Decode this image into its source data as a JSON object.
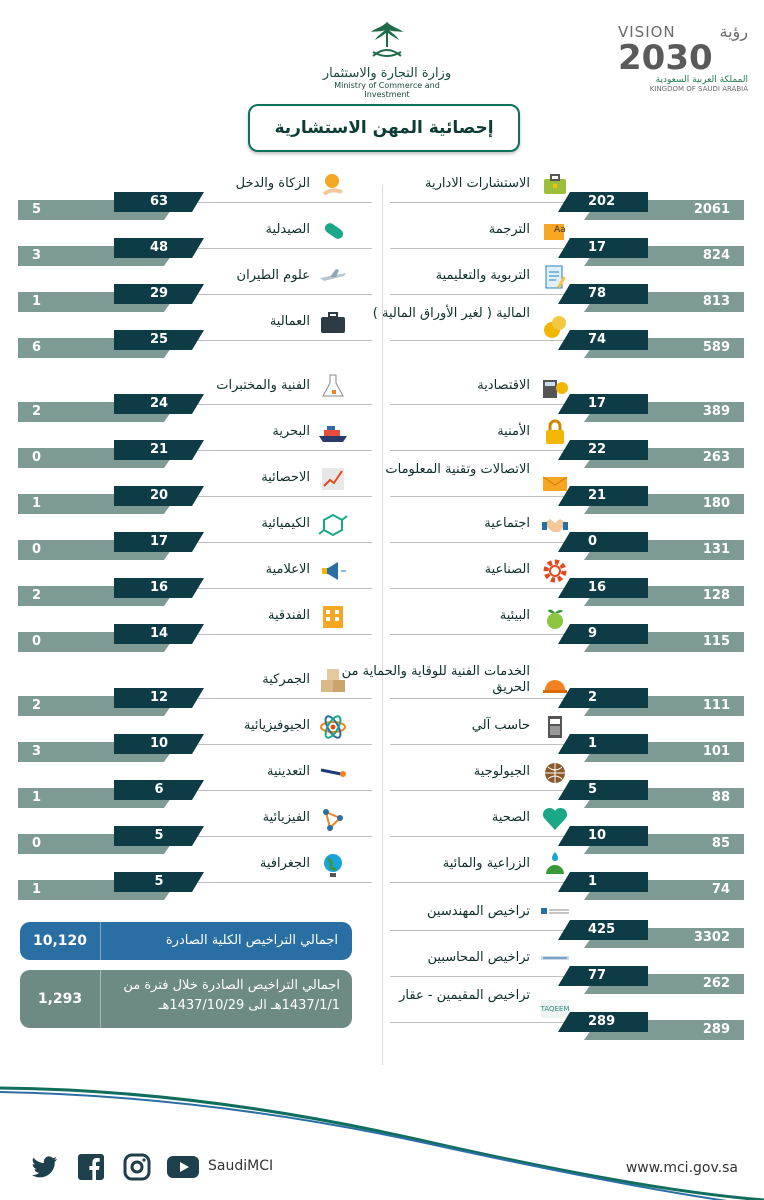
{
  "header": {
    "ministry_ar": "وزارة التجارة والاستثمار",
    "ministry_en": "Ministry of Commerce and Investment",
    "vision_word": "VISION",
    "vision_ar": "رؤية",
    "vision_year": "2030",
    "kingdom_ar": "المملكة العربية السعودية",
    "kingdom_en": "KINGDOM OF SAUDI ARABIA"
  },
  "title": "إحصائية المهن الاستشارية",
  "right_items": [
    {
      "label": "الاستشارات الادارية",
      "icon": "briefcase-icon",
      "a": "202",
      "b": "2061"
    },
    {
      "label": "الترجمة",
      "icon": "translation-icon",
      "a": "17",
      "b": "824"
    },
    {
      "label": "التربوية والتعليمية",
      "icon": "document-icon",
      "a": "78",
      "b": "813"
    },
    {
      "label": "المالية ( لغير الأوراق المالية )",
      "icon": "coins-icon",
      "a": "74",
      "b": "589"
    },
    {
      "label": "الاقتصادية",
      "icon": "calculator-icon",
      "a": "17",
      "b": "389"
    },
    {
      "label": "الأمنية",
      "icon": "lock-icon",
      "a": "22",
      "b": "263"
    },
    {
      "label": "الاتصالات وتقنية المعلومات",
      "icon": "envelope-icon",
      "a": "21",
      "b": "180"
    },
    {
      "label": "اجتماعية",
      "icon": "handshake-icon",
      "a": "0",
      "b": "131"
    },
    {
      "label": "الصناعية",
      "icon": "gear-icon",
      "a": "16",
      "b": "128"
    },
    {
      "label": "البيئية",
      "icon": "globe-plant-icon",
      "a": "9",
      "b": "115"
    },
    {
      "label": "الخدمات الفنية للوقاية والحماية من الحريق",
      "icon": "helmet-icon",
      "a": "2",
      "b": "111"
    },
    {
      "label": "حاسب آلي",
      "icon": "computer-icon",
      "a": "1",
      "b": "101"
    },
    {
      "label": "الجيولوجية",
      "icon": "earth-icon",
      "a": "5",
      "b": "88"
    },
    {
      "label": "الصحية",
      "icon": "heart-icon",
      "a": "10",
      "b": "85"
    },
    {
      "label": "الزراعية والمائية",
      "icon": "plant-water-icon",
      "a": "1",
      "b": "74"
    },
    {
      "label": "تراخيص المهندسين",
      "icon": "engineers-council-logo",
      "a": "425",
      "b": "3302"
    },
    {
      "label": "تراخيص المحاسبين",
      "icon": "accountants-logo",
      "a": "77",
      "b": "262"
    },
    {
      "label": "تراخيص المقيمين - عقار",
      "icon": "taqeem-logo",
      "a": "289",
      "b": "289"
    }
  ],
  "left_items": [
    {
      "label": "الزكاة والدخل",
      "icon": "coin-hand-icon",
      "a": "63",
      "b": "5"
    },
    {
      "label": "الصيدلية",
      "icon": "pill-icon",
      "a": "48",
      "b": "3"
    },
    {
      "label": "علوم الطيران",
      "icon": "airplane-icon",
      "a": "29",
      "b": "1"
    },
    {
      "label": "العمالية",
      "icon": "bag-icon",
      "a": "25",
      "b": "6"
    },
    {
      "label": "الفنية والمختبرات",
      "icon": "flask-icon",
      "a": "24",
      "b": "2"
    },
    {
      "label": "البحرية",
      "icon": "ship-icon",
      "a": "21",
      "b": "0"
    },
    {
      "label": "الاحصائية",
      "icon": "chart-icon",
      "a": "20",
      "b": "1"
    },
    {
      "label": "الكيميائية",
      "icon": "molecule-icon",
      "a": "17",
      "b": "0"
    },
    {
      "label": "الاعلامية",
      "icon": "megaphone-icon",
      "a": "16",
      "b": "2"
    },
    {
      "label": "الفندقية",
      "icon": "building-icon",
      "a": "14",
      "b": "0"
    },
    {
      "label": "الجمركية",
      "icon": "boxes-icon",
      "a": "12",
      "b": "2"
    },
    {
      "label": "الجيوفيزيائية",
      "icon": "atom-icon",
      "a": "10",
      "b": "3"
    },
    {
      "label": "التعدينية",
      "icon": "wrench-icon",
      "a": "6",
      "b": "1"
    },
    {
      "label": "الفيزيائية",
      "icon": "network-icon",
      "a": "5",
      "b": "0"
    },
    {
      "label": "الجغرافية",
      "icon": "globe-icon",
      "a": "5",
      "b": "1"
    }
  ],
  "totals": {
    "total_label": "اجمالي التراخيص الكلية الصادرة",
    "total_value": "10,120",
    "period_label": "اجمالي التراخيص الصادرة خلال فترة من 1437/1/1هـ الى 1437/10/29هـ",
    "period_value": "1,293"
  },
  "footer": {
    "handle": "SaudiMCI",
    "site": "www.mci.gov.sa",
    "social_icons": [
      "twitter-icon",
      "facebook-icon",
      "instagram-icon",
      "youtube-icon"
    ]
  },
  "colors": {
    "dark_bar": "#0d3b46",
    "gray_bar": "#7d9a94",
    "total_box": "#2a6fa4",
    "period_box": "#6e8a85",
    "accent": "#0f6e5c"
  }
}
